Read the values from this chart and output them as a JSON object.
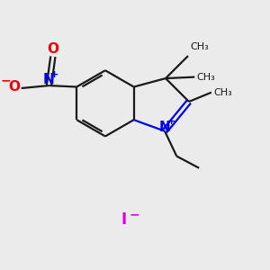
{
  "bg_color": "#ebebeb",
  "bond_color": "#1a1a1a",
  "n_color": "#0000ee",
  "o_color": "#ee0000",
  "i_color": "#dd00dd",
  "line_width": 1.6,
  "font_size": 10,
  "xlim": [
    0,
    10
  ],
  "ylim": [
    0,
    10
  ],
  "iodide_x": 4.5,
  "iodide_y": 1.8
}
